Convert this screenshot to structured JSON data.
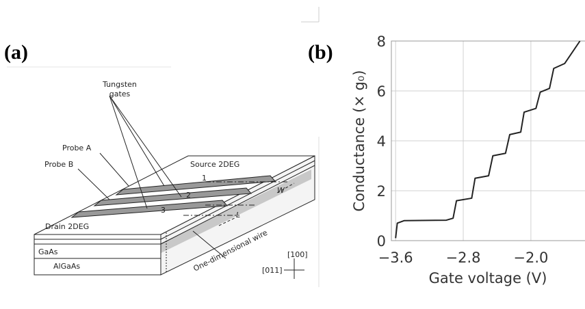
{
  "diagram": {
    "panel_label": "(a)",
    "labels": {
      "tungsten": "Tungsten",
      "gates": "gates",
      "probe_a": "Probe A",
      "probe_b": "Probe B",
      "source": "Source 2DEG",
      "gate1": "1",
      "gate2": "2",
      "gate3": "3",
      "width": "W",
      "length": "L",
      "drain": "Drain 2DEG",
      "gaas": "GaAs",
      "algaas": "AlGaAs",
      "wire": "One-dimensional wire",
      "dir100": "[100]",
      "dir011": "[011]"
    }
  },
  "chart_data": {
    "type": "line",
    "panel_label": "(b)",
    "xlabel": "Gate voltage (V)",
    "ylabel": "Conductance (× g₀)",
    "xlim": [
      -3.65,
      -1.36
    ],
    "ylim": [
      0,
      8
    ],
    "xticks": [
      {
        "value": -3.6,
        "label": "−3.6"
      },
      {
        "value": -2.8,
        "label": "−2.8"
      },
      {
        "value": -2.0,
        "label": "−2.0"
      }
    ],
    "yticks": [
      0,
      2,
      4,
      6,
      8
    ],
    "grid": true,
    "color": "#222222",
    "x": [
      -3.6,
      -3.58,
      -3.5,
      -3.0,
      -2.92,
      -2.88,
      -2.7,
      -2.66,
      -2.5,
      -2.45,
      -2.3,
      -2.25,
      -2.12,
      -2.08,
      -1.94,
      -1.89,
      -1.78,
      -1.73,
      -1.6,
      -1.42
    ],
    "values": [
      0.1,
      0.7,
      0.8,
      0.82,
      0.9,
      1.6,
      1.7,
      2.5,
      2.6,
      3.4,
      3.5,
      4.25,
      4.35,
      5.15,
      5.3,
      5.95,
      6.1,
      6.9,
      7.1,
      8.0
    ]
  }
}
